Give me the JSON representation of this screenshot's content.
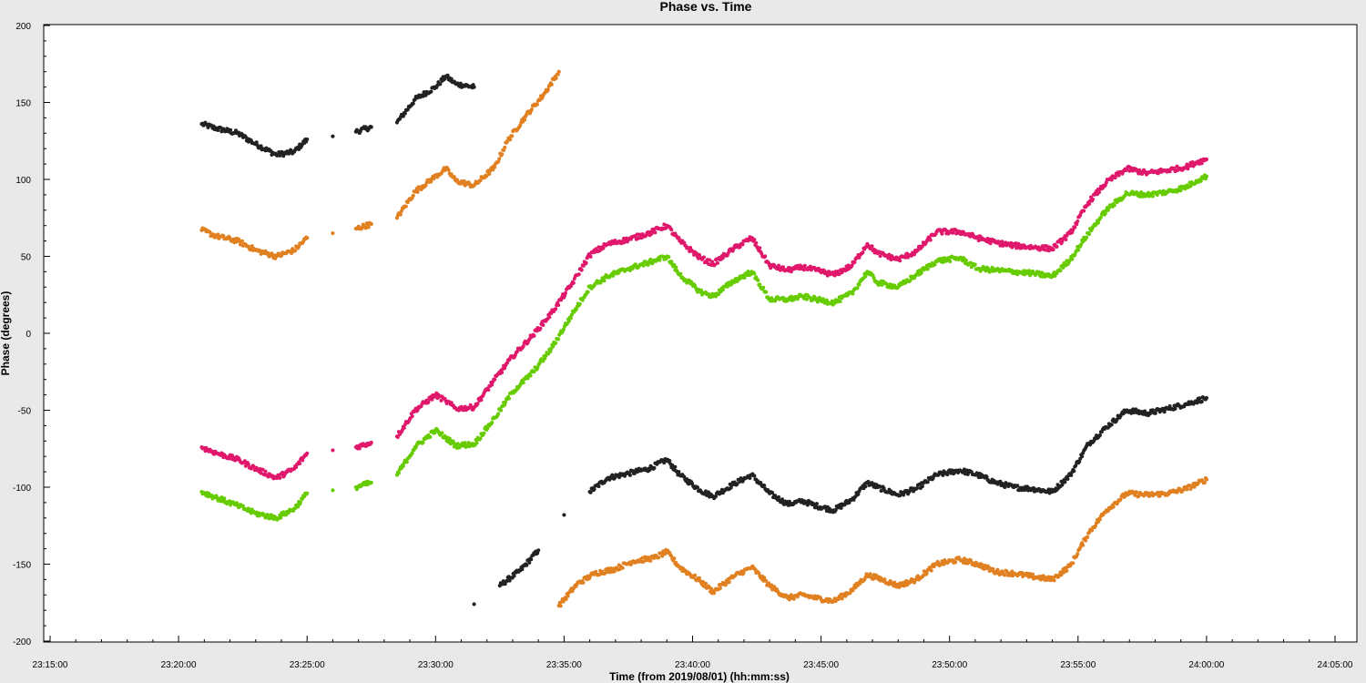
{
  "chart_data": {
    "type": "scatter",
    "title": "Phase vs. Time",
    "xlabel": "Time (from 2019/08/01) (hh:mm:ss)",
    "ylabel": "Phase (degrees)",
    "x_unit": "minutes after 23:15:00",
    "xlim": [
      0,
      50
    ],
    "ylim": [
      -200,
      200
    ],
    "x_tick_values": [
      0,
      5,
      10,
      15,
      20,
      25,
      30,
      35,
      40,
      45,
      50
    ],
    "x_tick_labels": [
      "23:15:00",
      "23:20:00",
      "23:25:00",
      "23:30:00",
      "23:35:00",
      "23:40:00",
      "23:45:00",
      "23:50:00",
      "23:55:00",
      "24:00:00",
      "24:05:00"
    ],
    "y_tick_values": [
      200,
      150,
      100,
      50,
      0,
      -50,
      -100,
      -150,
      -200
    ],
    "y_tick_labels": [
      "200",
      "150",
      "100",
      "50",
      "0",
      "-50",
      "-100",
      "-150",
      "-200"
    ],
    "grid": false,
    "legend": "none",
    "background": "#ffffff",
    "series": [
      {
        "color": "#222222",
        "x": [
          5.9,
          6.5,
          7.3,
          8,
          8.8,
          9.5,
          10,
          11,
          11.9,
          12.5,
          13.5,
          14.2,
          15,
          15.4,
          15.8,
          16.5,
          16.5,
          17.5,
          18.3,
          19,
          20,
          21,
          21.7,
          22.5,
          23.3,
          24,
          24.5,
          25.3,
          25.8,
          26.6,
          27.3,
          28,
          28.7,
          29.3,
          29.8,
          30.5,
          31.2,
          31.8,
          32.2,
          33,
          33.7,
          34.5,
          35.4,
          36.1,
          36.8,
          37.5,
          38.2,
          39,
          39.7,
          40.4,
          41.1,
          41.9,
          42.7,
          43.5,
          44.2,
          44.6,
          45
        ],
        "y": [
          136,
          133,
          130,
          123,
          116,
          118,
          126,
          128,
          131,
          134,
          137,
          152,
          160,
          167,
          162,
          160,
          -176,
          -164,
          -154,
          -141,
          -118,
          -103,
          -94,
          -91,
          -88,
          -82,
          -92,
          -102,
          -106,
          -98,
          -92,
          -104,
          -111,
          -109,
          -112,
          -115,
          -108,
          -97,
          -100,
          -105,
          -101,
          -92,
          -89,
          -92,
          -97,
          -100,
          -101,
          -103,
          -92,
          -72,
          -61,
          -50,
          -52,
          -49,
          -46,
          -44,
          -42
        ]
      },
      {
        "color": "#e08020",
        "x": [
          5.9,
          6.5,
          7.3,
          8,
          8.8,
          9.5,
          10,
          11,
          11.9,
          12.5,
          13.5,
          14.2,
          15,
          15.4,
          15.8,
          16.5,
          17.3,
          17.8,
          18.5,
          19.2,
          19.8,
          19.8,
          20.5,
          21.2,
          22,
          22.7,
          23.5,
          24,
          24.5,
          25.3,
          25.8,
          26.6,
          27.3,
          28,
          28.7,
          29.3,
          29.8,
          30.5,
          31.2,
          31.8,
          32.2,
          33,
          33.7,
          34.5,
          35.4,
          36.1,
          36.8,
          37.5,
          38.2,
          39,
          39.7,
          40.4,
          41.1,
          41.9,
          42.7,
          43.5,
          44.2,
          44.6,
          45
        ],
        "y": [
          67,
          63,
          60,
          54,
          50,
          54,
          62,
          65,
          68,
          71,
          75,
          92,
          102,
          107,
          99,
          96,
          108,
          125,
          141,
          155,
          170,
          -177,
          -163,
          -156,
          -153,
          -148,
          -146,
          -142,
          -152,
          -161,
          -168,
          -158,
          -152,
          -164,
          -172,
          -170,
          -172,
          -174,
          -167,
          -157,
          -159,
          -164,
          -160,
          -150,
          -147,
          -150,
          -155,
          -156,
          -158,
          -160,
          -151,
          -130,
          -115,
          -104,
          -105,
          -104,
          -101,
          -98,
          -95
        ]
      },
      {
        "color": "#e0186c",
        "x": [
          5.9,
          6.5,
          7.3,
          8,
          8.8,
          9.5,
          10,
          11,
          11.9,
          12.5,
          13.5,
          14.2,
          15,
          15.4,
          15.8,
          16.5,
          17.3,
          18,
          18.8,
          19.5,
          20.3,
          21,
          21.7,
          22.5,
          23.3,
          24,
          24.5,
          25.3,
          25.8,
          26.6,
          27.3,
          28,
          28.7,
          29.3,
          29.8,
          30.5,
          31.2,
          31.8,
          32.2,
          33,
          33.7,
          34.5,
          35.4,
          36.1,
          36.8,
          37.5,
          38.2,
          39,
          39.7,
          40.4,
          41.1,
          41.9,
          42.7,
          43.5,
          44.2,
          44.6,
          45
        ],
        "y": [
          -74,
          -78,
          -82,
          -88,
          -94,
          -88,
          -78,
          -76,
          -74,
          -71,
          -67,
          -50,
          -40,
          -44,
          -49,
          -48,
          -30,
          -15,
          -1,
          13,
          32,
          51,
          58,
          61,
          65,
          70,
          60,
          49,
          45,
          55,
          62,
          44,
          41,
          43,
          41,
          38,
          44,
          58,
          52,
          48,
          53,
          66,
          66,
          62,
          59,
          57,
          56,
          55,
          65,
          85,
          98,
          107,
          104,
          106,
          108,
          111,
          113
        ]
      },
      {
        "color": "#66cc00",
        "x": [
          5.9,
          6.5,
          7.3,
          8,
          8.8,
          9.5,
          10,
          11,
          11.9,
          12.5,
          13.5,
          14.2,
          15,
          15.4,
          15.8,
          16.5,
          17.3,
          18,
          18.8,
          19.5,
          20.3,
          21,
          21.7,
          22.5,
          23.3,
          24,
          24.5,
          25.3,
          25.8,
          26.6,
          27.3,
          28,
          28.7,
          29.3,
          29.8,
          30.5,
          31.2,
          31.8,
          32.2,
          33,
          33.7,
          34.5,
          35.4,
          36.1,
          36.8,
          37.5,
          38.2,
          39,
          39.7,
          40.4,
          41.1,
          41.9,
          42.7,
          43.5,
          44.2,
          44.6,
          45
        ],
        "y": [
          -103,
          -107,
          -112,
          -117,
          -120,
          -114,
          -104,
          -102,
          -100,
          -97,
          -92,
          -74,
          -63,
          -68,
          -73,
          -72,
          -55,
          -38,
          -25,
          -10,
          12,
          30,
          37,
          42,
          46,
          50,
          38,
          27,
          24,
          34,
          40,
          22,
          22,
          24,
          22,
          20,
          26,
          40,
          33,
          30,
          38,
          47,
          49,
          42,
          41,
          40,
          39,
          37,
          48,
          65,
          80,
          91,
          90,
          92,
          95,
          99,
          102
        ]
      }
    ]
  }
}
